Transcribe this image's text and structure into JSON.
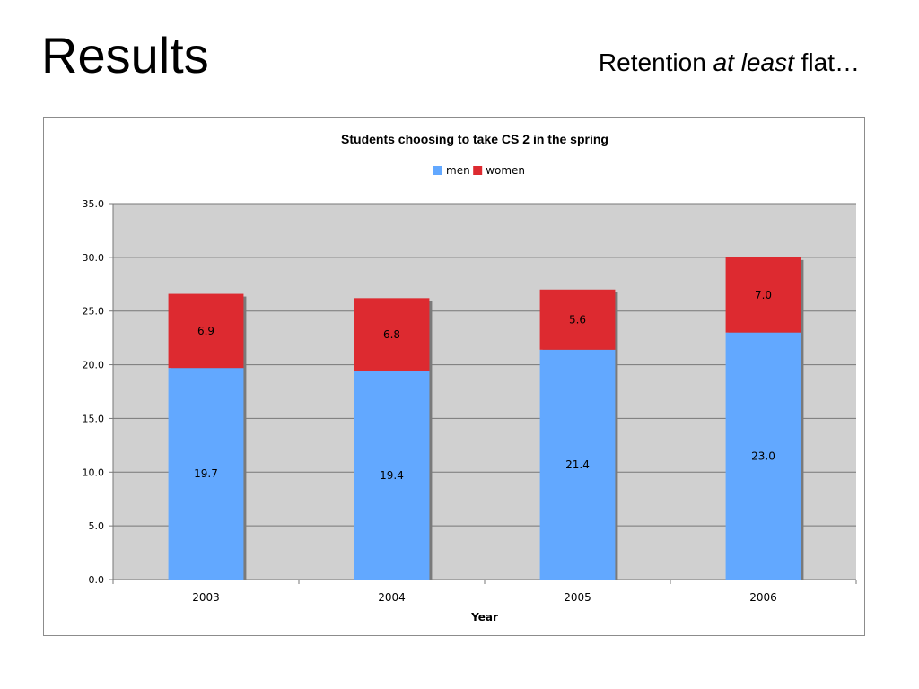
{
  "slide": {
    "title": "Results",
    "subtitle_pre": "Retention",
    "subtitle_em": "at least",
    "subtitle_post": "flat…"
  },
  "chart_data": {
    "type": "bar",
    "stacked": true,
    "title": "Students choosing to take CS 2 in the spring",
    "xlabel": "Year",
    "ylabel": "",
    "categories": [
      "2003",
      "2004",
      "2005",
      "2006"
    ],
    "series": [
      {
        "name": "men",
        "color": "#62a8ff",
        "values": [
          19.7,
          19.4,
          21.4,
          23.0
        ],
        "labels": [
          "19.7",
          "19.4",
          "21.4",
          "23.0"
        ]
      },
      {
        "name": "women",
        "color": "#dd2a30",
        "values": [
          6.9,
          6.8,
          5.6,
          7.0
        ],
        "labels": [
          "6.9",
          "6.8",
          "5.6",
          "7.0"
        ]
      }
    ],
    "ylim": [
      0,
      35
    ],
    "yticks": [
      "0.0",
      "5.0",
      "10.0",
      "15.0",
      "20.0",
      "25.0",
      "30.0",
      "35.0"
    ],
    "grid": true,
    "legend_position": "top-center",
    "plot_background": "#d0d0d0"
  }
}
